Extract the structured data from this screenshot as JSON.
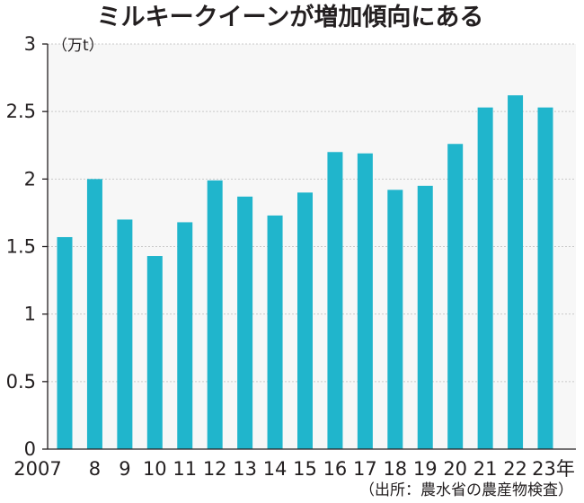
{
  "chart_data": {
    "type": "bar",
    "title": "ミルキークイーンが増加傾向にある",
    "ylabel": "（万t）",
    "source": "（出所：農水省の農産物検査）",
    "categories": [
      "2007",
      "8",
      "9",
      "10",
      "11",
      "12",
      "13",
      "14",
      "15",
      "16",
      "17",
      "18",
      "19",
      "20",
      "21",
      "22",
      "23年"
    ],
    "values": [
      1.57,
      2.0,
      1.7,
      1.43,
      1.68,
      1.99,
      1.87,
      1.73,
      1.9,
      2.2,
      2.19,
      1.92,
      1.95,
      2.26,
      2.53,
      2.62,
      2.53
    ],
    "ylim": [
      0,
      3
    ],
    "yticks": [
      "0",
      "0.5",
      "1",
      "1.5",
      "2",
      "2.5",
      "3"
    ],
    "grid": true,
    "colors": {
      "bar": "#20b5cc",
      "plot_background": "#f7f7f7"
    }
  }
}
